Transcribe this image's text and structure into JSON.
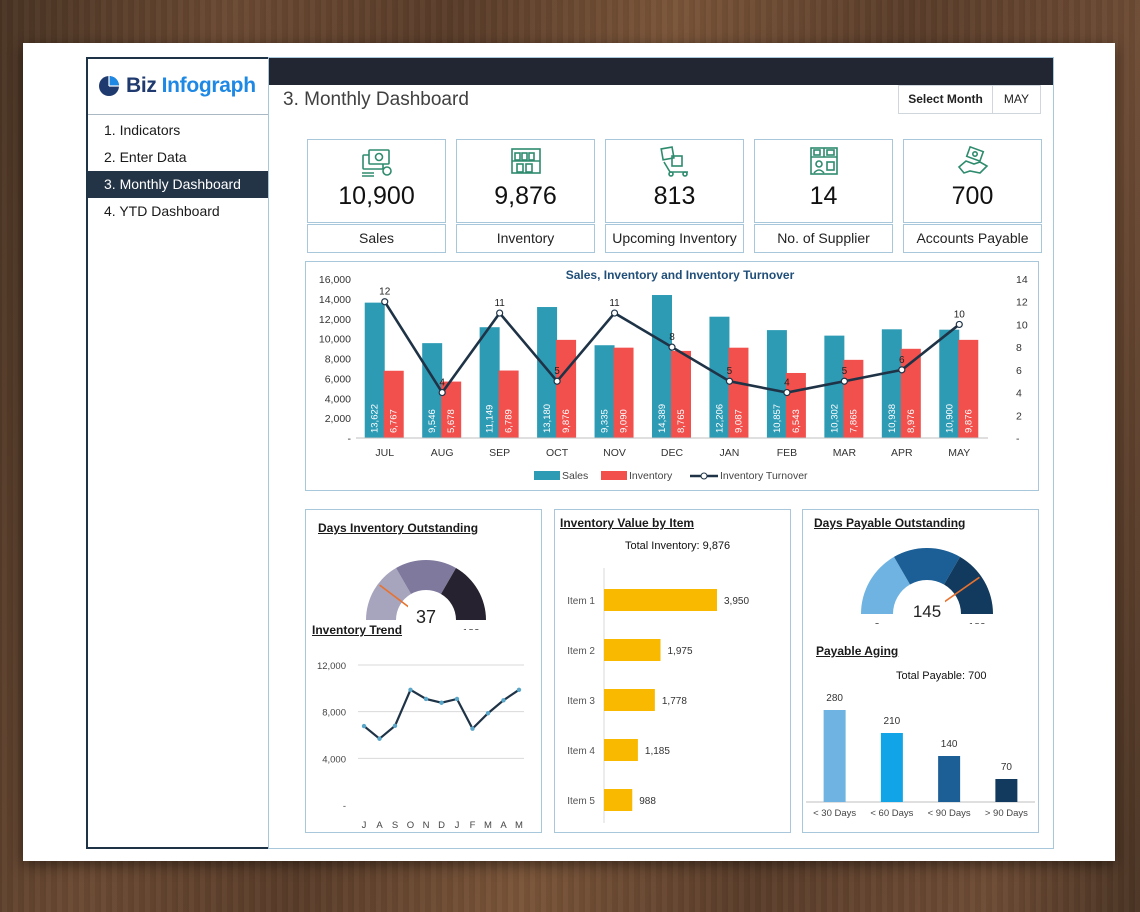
{
  "brand": {
    "name_part1": "Biz",
    "name_part2": "Infograph",
    "accent": "#1e88e5"
  },
  "nav": {
    "items": [
      {
        "label": "1. Indicators"
      },
      {
        "label": "2. Enter Data"
      },
      {
        "label": "3. Monthly Dashboard",
        "active": true
      },
      {
        "label": "4. YTD Dashboard"
      }
    ]
  },
  "header": {
    "title": "3. Monthly Dashboard",
    "select_label": "Select Month",
    "select_value": "MAY"
  },
  "kpis": [
    {
      "value": "10,900",
      "label": "Sales",
      "icon": "money-icon"
    },
    {
      "value": "9,876",
      "label": "Inventory",
      "icon": "warehouse-shelf-icon"
    },
    {
      "value": "813",
      "label": "Upcoming Inventory",
      "icon": "hand-truck-icon"
    },
    {
      "value": "14",
      "label": "No. of Supplier",
      "icon": "supplier-boxes-icon"
    },
    {
      "value": "700",
      "label": "Accounts Payable",
      "icon": "hand-payment-icon"
    }
  ],
  "colors": {
    "sales": "#2e9bb5",
    "inventory": "#f2504d",
    "turnover": "#1f3347",
    "item_bar": "#f9b900",
    "navy": "#233447"
  },
  "chart_data": [
    {
      "type": "bar",
      "title": "Sales, Inventory and Inventory Turnover",
      "categories": [
        "JUL",
        "AUG",
        "SEP",
        "OCT",
        "NOV",
        "DEC",
        "JAN",
        "FEB",
        "MAR",
        "APR",
        "MAY"
      ],
      "series": [
        {
          "name": "Sales",
          "values": [
            13622,
            9546,
            11149,
            13180,
            9335,
            14389,
            12206,
            10857,
            10302,
            10938,
            10900
          ],
          "labels": [
            "13,622",
            "9,546",
            "11,149",
            "13,180",
            "9,335",
            "14,389",
            "12,206",
            "10,857",
            "10,302",
            "10,938",
            "10,900"
          ]
        },
        {
          "name": "Inventory",
          "values": [
            6767,
            5678,
            6789,
            9876,
            9090,
            8765,
            9087,
            6543,
            7865,
            8976,
            9876
          ],
          "labels": [
            "6,767",
            "5,678",
            "6,789",
            "9,876",
            "9,090",
            "8,765",
            "9,087",
            "6,543",
            "7,865",
            "8,976",
            "9,876"
          ]
        },
        {
          "name": "Inventory Turnover",
          "axis": "right",
          "values": [
            12,
            4,
            11,
            5,
            11,
            8,
            5,
            4,
            5,
            6,
            10
          ]
        }
      ],
      "ylim": [
        0,
        16000
      ],
      "y_ticks": [
        "-",
        "2,000",
        "4,000",
        "6,000",
        "8,000",
        "10,000",
        "12,000",
        "14,000",
        "16,000"
      ],
      "y2lim": [
        0,
        14
      ],
      "y2_ticks": [
        "-",
        "2",
        "4",
        "6",
        "8",
        "10",
        "12",
        "14"
      ],
      "legend": "bottom"
    },
    {
      "type": "gauge",
      "title": "Days Inventory Outstanding",
      "value": 37,
      "min": 0,
      "max": 180,
      "min_label": "0",
      "max_label": "180"
    },
    {
      "type": "line",
      "title": "Inventory Trend",
      "x": [
        "J",
        "A",
        "S",
        "O",
        "N",
        "D",
        "J",
        "F",
        "M",
        "A",
        "M"
      ],
      "values": [
        6767,
        5678,
        6789,
        9876,
        9090,
        8765,
        9087,
        6543,
        7865,
        8976,
        9876
      ],
      "ylim": [
        0,
        12000
      ],
      "y_ticks": [
        "-",
        "4,000",
        "8,000",
        "12,000"
      ]
    },
    {
      "type": "bar",
      "orientation": "horizontal",
      "title": "Inventory Value by Item",
      "subtitle": "Total Inventory: 9,876",
      "categories": [
        "Item 1",
        "Item 2",
        "Item 3",
        "Item 4",
        "Item 5"
      ],
      "values": [
        3950,
        1975,
        1778,
        1185,
        988
      ],
      "labels": [
        "3,950",
        "1,975",
        "1,778",
        "1,185",
        "988"
      ]
    },
    {
      "type": "gauge",
      "title": "Days Payable Outstanding",
      "value": 145,
      "min": 0,
      "max": 180,
      "min_label": "0",
      "max_label": "180"
    },
    {
      "type": "bar",
      "title": "Payable Aging",
      "subtitle": "Total Payable: 700",
      "categories": [
        "< 30 Days",
        "< 60 Days",
        "< 90 Days",
        "> 90 Days"
      ],
      "values": [
        280,
        210,
        140,
        70
      ],
      "colors": [
        "#6fb3e2",
        "#11a5e8",
        "#1c5f96",
        "#123a5e"
      ]
    }
  ]
}
